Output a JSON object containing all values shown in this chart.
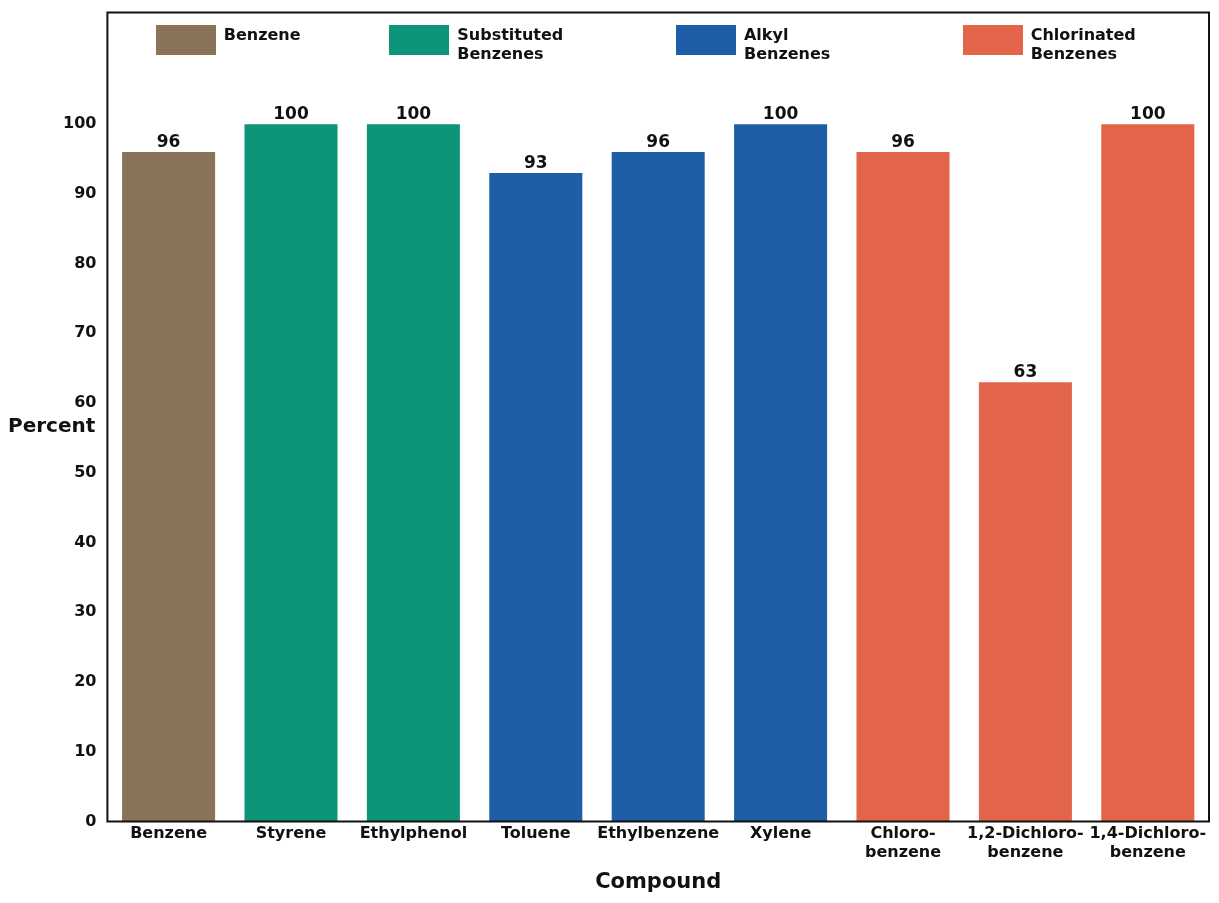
{
  "chart_data": {
    "type": "bar",
    "xlabel": "Compound",
    "ylabel": "Percent",
    "categories": [
      "Benzene",
      "Styrene",
      "Ethylphenol",
      "Toluene",
      "Ethylbenzene",
      "Xylene",
      "Chloro-benzene",
      "1,2-Dichloro-benzene",
      "1,4-Dichloro-benzene"
    ],
    "series": [
      {
        "name": "Benzene",
        "color": "#8a7459",
        "values": [
          96,
          null,
          null,
          null,
          null,
          null,
          null,
          null,
          null
        ]
      },
      {
        "name": "Substituted Benzenes",
        "color": "#0e9479",
        "values": [
          null,
          100,
          100,
          null,
          null,
          null,
          null,
          null,
          null
        ]
      },
      {
        "name": "Alkyl Benzenes",
        "color": "#1d5ea6",
        "values": [
          null,
          null,
          null,
          93,
          96,
          100,
          null,
          null,
          null
        ]
      },
      {
        "name": "Chlorinated Benzenes",
        "color": "#e2654a",
        "values": [
          null,
          null,
          null,
          null,
          null,
          null,
          96,
          63,
          100
        ]
      }
    ],
    "ylim": [
      0,
      116
    ],
    "yticks": [
      0,
      10,
      20,
      30,
      40,
      50,
      60,
      70,
      80,
      90,
      100
    ],
    "grid": false,
    "legend": "top",
    "data_labels": true
  }
}
